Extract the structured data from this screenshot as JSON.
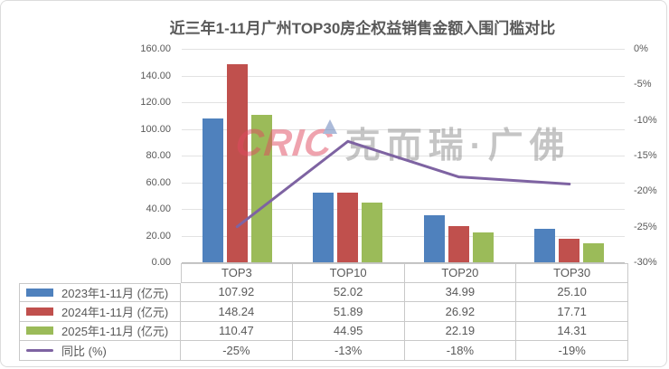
{
  "title": "近三年1-11月广州TOP30房企权益销售金额入围门槛对比",
  "watermark": {
    "logo": "CRIC",
    "text": "克而瑞·广佛"
  },
  "colors": {
    "blue": "#4F81BD",
    "red": "#C0504D",
    "green": "#9BBB59",
    "purple": "#7E63A2",
    "grid": "#E2E2E2",
    "axis_line": "#BFBFBF",
    "axis_text": "#595959",
    "table_border": "#C9C9C9",
    "table_text": "#595959",
    "title_text": "#595959",
    "watermark_logo": "#E04A5F",
    "watermark_accent": "#5A78B4",
    "watermark_text": "#8C8C8C"
  },
  "chart_data": {
    "type": "bar+line combo with data table legend",
    "categories": [
      "TOP3",
      "TOP10",
      "TOP20",
      "TOP30"
    ],
    "series": [
      {
        "name": "2023年1-11月 (亿元)",
        "chart": "bar",
        "color_key": "blue",
        "values": [
          107.92,
          52.02,
          34.99,
          25.1
        ],
        "display": [
          "107.92",
          "52.02",
          "34.99",
          "25.10"
        ]
      },
      {
        "name": "2024年1-11月 (亿元)",
        "chart": "bar",
        "color_key": "red",
        "values": [
          148.24,
          51.89,
          26.92,
          17.71
        ],
        "display": [
          "148.24",
          "51.89",
          "26.92",
          "17.71"
        ]
      },
      {
        "name": "2025年1-11月 (亿元)",
        "chart": "bar",
        "color_key": "green",
        "values": [
          110.47,
          44.95,
          22.19,
          14.31
        ],
        "display": [
          "110.47",
          "44.95",
          "22.19",
          "14.31"
        ]
      },
      {
        "name": "同比 (%)",
        "chart": "line",
        "color_key": "purple",
        "values": [
          -25,
          -13,
          -18,
          -19
        ],
        "display": [
          "-25%",
          "-13%",
          "-18%",
          "-19%"
        ]
      }
    ],
    "left_axis": {
      "min": 0,
      "max": 160,
      "step": 20,
      "labels": [
        "160.00",
        "140.00",
        "120.00",
        "100.00",
        "80.00",
        "60.00",
        "40.00",
        "20.00",
        "0.00"
      ]
    },
    "right_axis": {
      "min": -30,
      "max": 0,
      "step": 5,
      "labels": [
        "0%",
        "-5%",
        "-10%",
        "-15%",
        "-20%",
        "-25%",
        "-30%"
      ]
    },
    "grid": "horizontal only",
    "legend_position": "table rows, left of data table"
  }
}
